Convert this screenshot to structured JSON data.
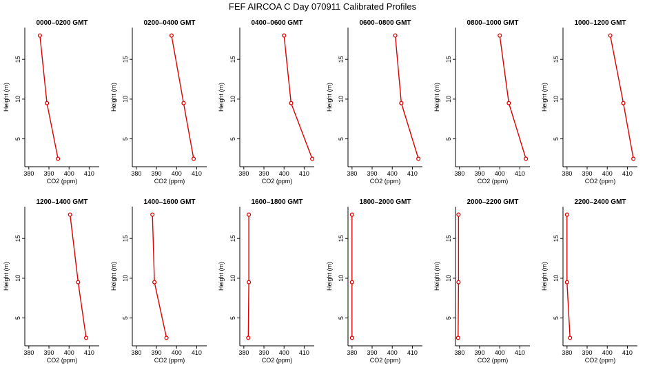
{
  "title": "FEF AIRCOA C  Day 070911  Calibrated Profiles",
  "colors": {
    "series": "#e00000",
    "axis": "#000000",
    "background": "#ffffff"
  },
  "chart_data": [
    {
      "type": "line",
      "title": "0000–0200 GMT",
      "xlabel": "CO2 (ppm)",
      "ylabel": "Height (m)",
      "xlim": [
        378,
        415
      ],
      "ylim": [
        1.5,
        19
      ],
      "xticks": [
        "380",
        "390",
        "400",
        "410"
      ],
      "yticks": [
        "5",
        "10",
        "15"
      ],
      "x": [
        385.5,
        389.0,
        394.5
      ],
      "y": [
        18,
        9.5,
        2.5
      ]
    },
    {
      "type": "line",
      "title": "0200–0400 GMT",
      "xlabel": "CO2 (ppm)",
      "ylabel": "Height (m)",
      "xlim": [
        378,
        415
      ],
      "ylim": [
        1.5,
        19
      ],
      "xticks": [
        "380",
        "390",
        "400",
        "410"
      ],
      "yticks": [
        "5",
        "10",
        "15"
      ],
      "x": [
        397.5,
        403.5,
        408.5
      ],
      "y": [
        18,
        9.5,
        2.5
      ]
    },
    {
      "type": "line",
      "title": "0400–0600 GMT",
      "xlabel": "CO2 (ppm)",
      "ylabel": "Height (m)",
      "xlim": [
        378,
        415
      ],
      "ylim": [
        1.5,
        19
      ],
      "xticks": [
        "380",
        "390",
        "400",
        "410"
      ],
      "yticks": [
        "5",
        "10",
        "15"
      ],
      "x": [
        400.0,
        403.5,
        414.0
      ],
      "y": [
        18,
        9.5,
        2.5
      ]
    },
    {
      "type": "line",
      "title": "0600–0800 GMT",
      "xlabel": "CO2 (ppm)",
      "ylabel": "Height (m)",
      "xlim": [
        378,
        415
      ],
      "ylim": [
        1.5,
        19
      ],
      "xticks": [
        "380",
        "390",
        "400",
        "410"
      ],
      "yticks": [
        "5",
        "10",
        "15"
      ],
      "x": [
        401.5,
        404.5,
        413.0
      ],
      "y": [
        18,
        9.5,
        2.5
      ]
    },
    {
      "type": "line",
      "title": "0800–1000 GMT",
      "xlabel": "CO2 (ppm)",
      "ylabel": "Height (m)",
      "xlim": [
        378,
        415
      ],
      "ylim": [
        1.5,
        19
      ],
      "xticks": [
        "380",
        "390",
        "400",
        "410"
      ],
      "yticks": [
        "5",
        "10",
        "15"
      ],
      "x": [
        400.0,
        404.5,
        413.0
      ],
      "y": [
        18,
        9.5,
        2.5
      ]
    },
    {
      "type": "line",
      "title": "1000–1200 GMT",
      "xlabel": "CO2 (ppm)",
      "ylabel": "Height (m)",
      "xlim": [
        378,
        415
      ],
      "ylim": [
        1.5,
        19
      ],
      "xticks": [
        "380",
        "390",
        "400",
        "410"
      ],
      "yticks": [
        "5",
        "10",
        "15"
      ],
      "x": [
        401.5,
        408.0,
        413.0
      ],
      "y": [
        18,
        9.5,
        2.5
      ]
    },
    {
      "type": "line",
      "title": "1200–1400 GMT",
      "xlabel": "CO2 (ppm)",
      "ylabel": "Height (m)",
      "xlim": [
        378,
        415
      ],
      "ylim": [
        1.5,
        19
      ],
      "xticks": [
        "380",
        "390",
        "400",
        "410"
      ],
      "yticks": [
        "5",
        "10",
        "15"
      ],
      "x": [
        400.5,
        404.5,
        408.5
      ],
      "y": [
        18,
        9.5,
        2.5
      ]
    },
    {
      "type": "line",
      "title": "1400–1600 GMT",
      "xlabel": "CO2 (ppm)",
      "ylabel": "Height (m)",
      "xlim": [
        378,
        415
      ],
      "ylim": [
        1.5,
        19
      ],
      "xticks": [
        "380",
        "390",
        "400",
        "410"
      ],
      "yticks": [
        "5",
        "10",
        "15"
      ],
      "x": [
        388.0,
        389.0,
        395.0
      ],
      "y": [
        18,
        9.5,
        2.5
      ]
    },
    {
      "type": "line",
      "title": "1600–1800 GMT",
      "xlabel": "CO2 (ppm)",
      "ylabel": "Height (m)",
      "xlim": [
        378,
        415
      ],
      "ylim": [
        1.5,
        19
      ],
      "xticks": [
        "380",
        "390",
        "400",
        "410"
      ],
      "yticks": [
        "5",
        "10",
        "15"
      ],
      "x": [
        382.5,
        382.5,
        382.2
      ],
      "y": [
        18,
        9.5,
        2.5
      ]
    },
    {
      "type": "line",
      "title": "1800–2000 GMT",
      "xlabel": "CO2 (ppm)",
      "ylabel": "Height (m)",
      "xlim": [
        378,
        415
      ],
      "ylim": [
        1.5,
        19
      ],
      "xticks": [
        "380",
        "390",
        "400",
        "410"
      ],
      "yticks": [
        "5",
        "10",
        "15"
      ],
      "x": [
        380.0,
        380.0,
        380.0
      ],
      "y": [
        18,
        9.5,
        2.5
      ]
    },
    {
      "type": "line",
      "title": "2000–2200 GMT",
      "xlabel": "CO2 (ppm)",
      "ylabel": "Height (m)",
      "xlim": [
        378,
        415
      ],
      "ylim": [
        1.5,
        19
      ],
      "xticks": [
        "380",
        "390",
        "400",
        "410"
      ],
      "yticks": [
        "5",
        "10",
        "15"
      ],
      "x": [
        379.5,
        379.5,
        379.3
      ],
      "y": [
        18,
        9.5,
        2.5
      ]
    },
    {
      "type": "line",
      "title": "2200–2400 GMT",
      "xlabel": "CO2 (ppm)",
      "ylabel": "Height (m)",
      "xlim": [
        378,
        415
      ],
      "ylim": [
        1.5,
        19
      ],
      "xticks": [
        "380",
        "390",
        "400",
        "410"
      ],
      "yticks": [
        "5",
        "10",
        "15"
      ],
      "x": [
        380.0,
        380.0,
        381.5
      ],
      "y": [
        18,
        9.5,
        2.5
      ]
    }
  ]
}
